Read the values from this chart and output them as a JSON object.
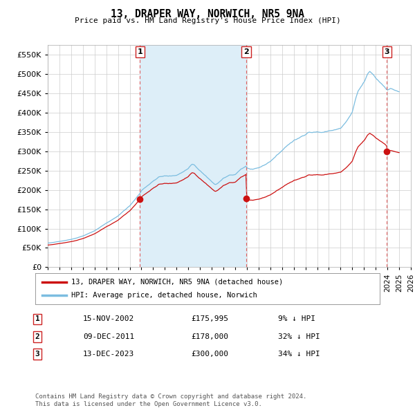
{
  "title": "13, DRAPER WAY, NORWICH, NR5 9NA",
  "subtitle": "Price paid vs. HM Land Registry's House Price Index (HPI)",
  "ylim": [
    0,
    575000
  ],
  "yticks": [
    0,
    50000,
    100000,
    150000,
    200000,
    250000,
    300000,
    350000,
    400000,
    450000,
    500000,
    550000
  ],
  "bg_color": "#ffffff",
  "grid_color": "#cccccc",
  "hpi_color": "#7bbde0",
  "hpi_fill_color": "#ddeef8",
  "price_color": "#cc1111",
  "dashed_color": "#e06060",
  "legend_label_price": "13, DRAPER WAY, NORWICH, NR5 9NA (detached house)",
  "legend_label_hpi": "HPI: Average price, detached house, Norwich",
  "transactions": [
    {
      "num": 1,
      "date_x": 2002.88,
      "price": 175995,
      "label": "1",
      "date_str": "15-NOV-2002",
      "price_str": "£175,995",
      "pct": "9% ↓ HPI"
    },
    {
      "num": 2,
      "date_x": 2011.94,
      "price": 178000,
      "label": "2",
      "date_str": "09-DEC-2011",
      "price_str": "£178,000",
      "pct": "32% ↓ HPI"
    },
    {
      "num": 3,
      "date_x": 2023.95,
      "price": 300000,
      "label": "3",
      "date_str": "13-DEC-2023",
      "price_str": "£300,000",
      "pct": "34% ↓ HPI"
    }
  ],
  "footer": "Contains HM Land Registry data © Crown copyright and database right 2024.\nThis data is licensed under the Open Government Licence v3.0.",
  "xlim": [
    1995,
    2026
  ],
  "xticks": [
    1995,
    1996,
    1997,
    1998,
    1999,
    2000,
    2001,
    2002,
    2003,
    2004,
    2005,
    2006,
    2007,
    2008,
    2009,
    2010,
    2011,
    2012,
    2013,
    2014,
    2015,
    2016,
    2017,
    2018,
    2019,
    2020,
    2021,
    2022,
    2023,
    2024,
    2025,
    2026
  ],
  "shade_between": [
    2002.88,
    2011.94
  ]
}
